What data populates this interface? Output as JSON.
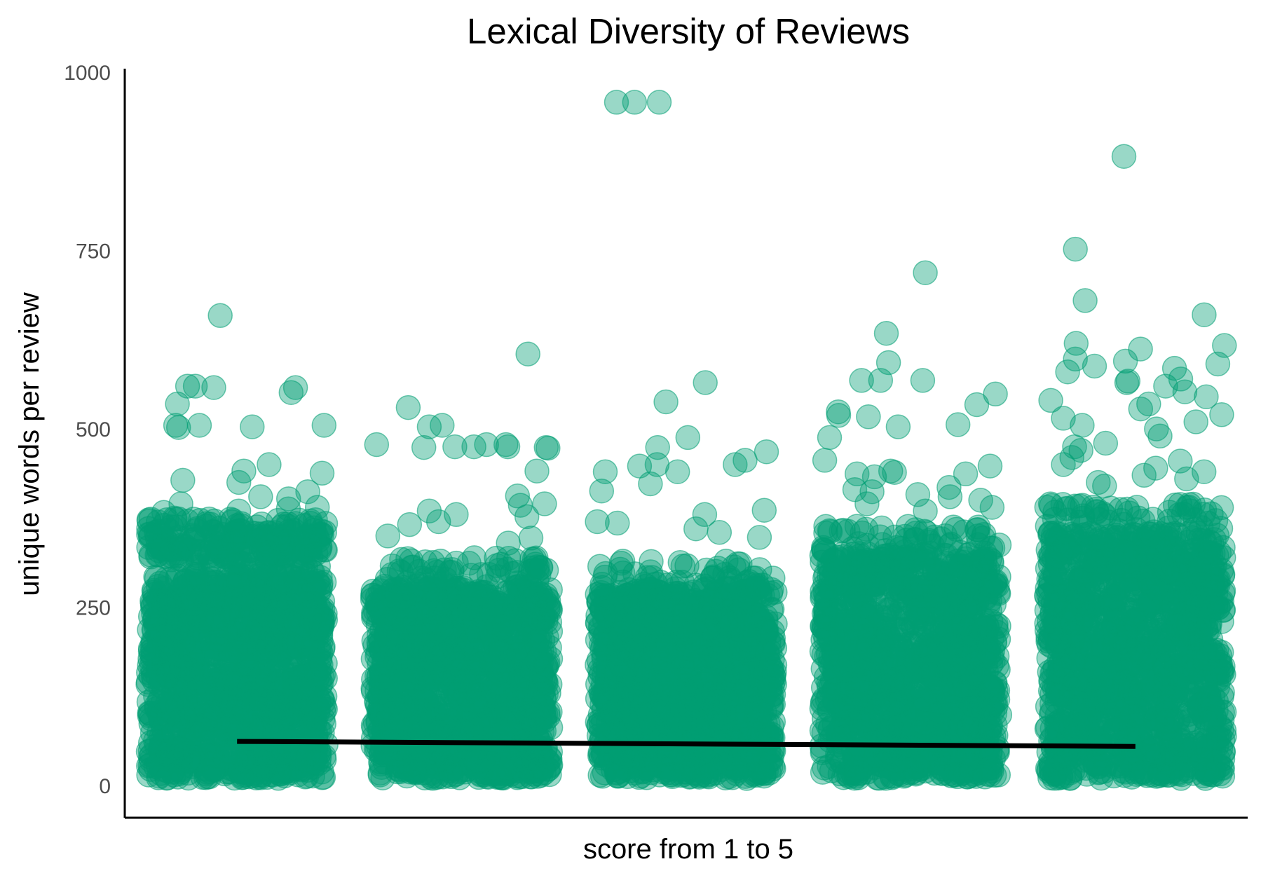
{
  "chart_data": {
    "type": "scatter",
    "title": "Lexical Diversity of Reviews",
    "xlabel": "score from 1 to 5",
    "ylabel": "unique words per review",
    "y_ticks": [
      "0",
      "250",
      "500",
      "750",
      "1000"
    ],
    "y_tick_values": [
      0,
      250,
      500,
      750,
      1000
    ],
    "ylim": [
      -45,
      1005
    ],
    "xlim": [
      0.5,
      5.5
    ],
    "x_ticks": [],
    "grid": false,
    "legend": "none",
    "jitter": "horizontal, +/- 0.45",
    "colors": {
      "points": "#009e73",
      "trend": "#000000",
      "axis": "#000000"
    },
    "series": [
      {
        "score": 1,
        "dense_range": [
          10,
          295
        ],
        "band": [
          320,
          375
        ],
        "outliers": [
          659,
          560,
          560,
          558,
          551,
          558,
          535,
          505,
          505,
          505,
          503,
          502,
          450,
          441,
          438,
          428,
          425,
          412,
          405,
          402,
          395,
          390,
          388,
          385,
          383
        ]
      },
      {
        "score": 2,
        "dense_range": [
          10,
          280
        ],
        "band": [],
        "outliers": [
          605,
          530,
          505,
          503,
          478,
          478,
          478,
          475,
          475,
          475,
          474,
          474,
          473,
          441,
          406,
          395,
          393,
          385,
          380,
          377,
          370,
          366,
          350,
          347,
          340
        ]
      },
      {
        "score": 3,
        "dense_range": [
          10,
          275
        ],
        "band": [],
        "outliers": [
          958,
          958,
          958,
          565,
          538,
          488,
          474,
          468,
          456,
          450,
          450,
          448,
          440,
          440,
          423,
          413,
          386,
          380,
          370,
          368,
          360,
          355,
          348
        ]
      },
      {
        "score": 4,
        "dense_range": [
          10,
          325
        ],
        "band": [],
        "outliers": [
          719,
          634,
          593,
          568,
          568,
          568,
          549,
          534,
          524,
          519,
          517,
          506,
          503,
          488,
          456,
          448,
          441,
          439,
          437,
          437,
          433,
          418,
          415,
          412,
          408,
          405,
          400,
          395,
          390,
          385
        ]
      },
      {
        "score": 5,
        "dense_range": [
          10,
          355
        ],
        "band": [],
        "outliers": [
          882,
          752,
          680,
          660,
          620,
          617,
          612,
          598,
          595,
          591,
          588,
          585,
          580,
          570,
          567,
          565,
          560,
          552,
          545,
          540,
          535,
          528,
          520,
          515,
          510,
          505,
          500,
          490,
          480,
          475,
          470,
          460,
          455,
          450,
          445,
          440,
          435,
          430,
          425,
          420
        ]
      }
    ],
    "trend_line": {
      "x": [
        1,
        5
      ],
      "y": [
        62,
        55
      ]
    }
  }
}
